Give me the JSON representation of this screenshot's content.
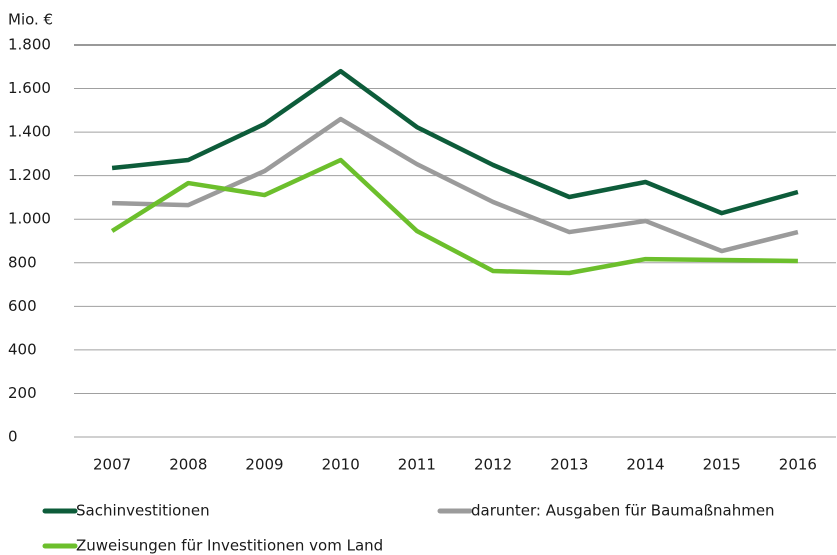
{
  "chart_data": {
    "type": "line",
    "y_label": "Mio. €",
    "categories": [
      "2007",
      "2008",
      "2009",
      "2010",
      "2011",
      "2012",
      "2013",
      "2014",
      "2015",
      "2016"
    ],
    "series": [
      {
        "name": "Sachinvestitionen",
        "color": "#0d5c3a",
        "values": [
          1235,
          1272,
          1437,
          1680,
          1423,
          1249,
          1102,
          1171,
          1028,
          1125
        ]
      },
      {
        "name": "darunter: Ausgaben für Baumaßnahmen",
        "color": "#9b9b9b",
        "values": [
          1074,
          1065,
          1221,
          1460,
          1253,
          1079,
          941,
          992,
          854,
          941
        ]
      },
      {
        "name": "Zuweisungen für Investitionen vom Land",
        "color": "#6cbf2c",
        "values": [
          946,
          1166,
          1111,
          1272,
          946,
          762,
          753,
          817,
          813,
          808
        ]
      }
    ],
    "ylim": [
      0,
      1800
    ],
    "yticks": [
      0,
      200,
      400,
      600,
      800,
      {
        "value": 1000,
        "label": "1.000"
      },
      {
        "value": 1200,
        "label": "1.200"
      },
      {
        "value": 1400,
        "label": "1.400"
      },
      {
        "value": 1600,
        "label": "1.600"
      },
      {
        "value": 1800,
        "label": "1.800"
      }
    ],
    "grid": true
  }
}
